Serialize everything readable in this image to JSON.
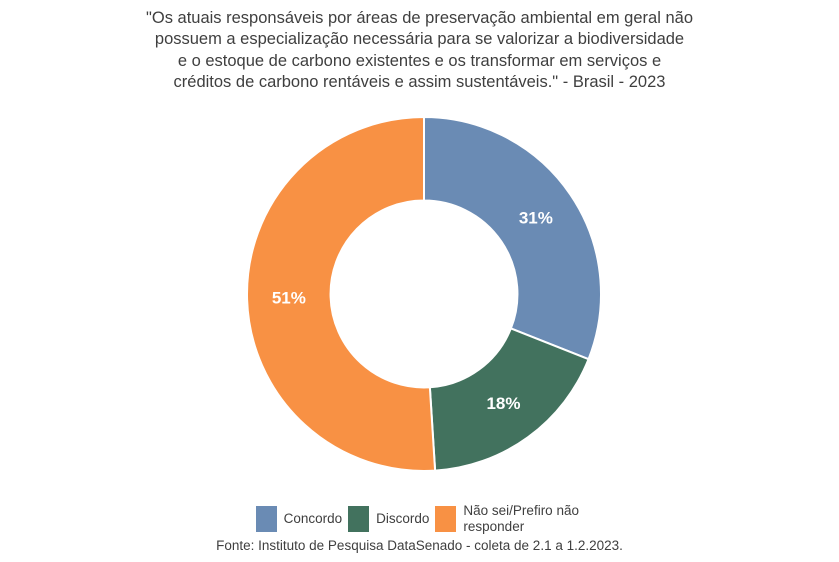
{
  "title": {
    "lines": [
      "\"Os atuais responsáveis por áreas de preservação ambiental em geral não",
      "possuem a especialização necessária para se valorizar a biodiversidade",
      "e o estoque de carbono existentes e os transformar em serviços e",
      "créditos de carbono rentáveis e assim sustentáveis.\" - Brasil - 2023"
    ]
  },
  "chart_data": {
    "type": "pie",
    "subtype": "donut",
    "title": "\"Os atuais responsáveis por áreas de preservação ambiental em geral não possuem a especialização necessária para se valorizar a biodiversidade e o estoque de carbono existentes e os transformar em serviços e créditos de carbono rentáveis e assim sustentáveis.\" - Brasil - 2023",
    "labels": [
      "Concordo",
      "Discordo",
      "Não sei/Prefiro não responder"
    ],
    "values": [
      31,
      18,
      51
    ],
    "unit": "%",
    "colors": [
      "#6A8BB4",
      "#42725E",
      "#F89144"
    ],
    "start_angle_deg": 0,
    "direction": "clockwise",
    "inner_radius_ratio": 0.528,
    "separator_color": "#FFFFFF",
    "data_label_color": "#FFFFFF",
    "legend_position": "bottom"
  },
  "footer": {
    "source": "Fonte: Instituto de Pesquisa DataSenado - coleta de 2.1 a 1.2.2023."
  }
}
